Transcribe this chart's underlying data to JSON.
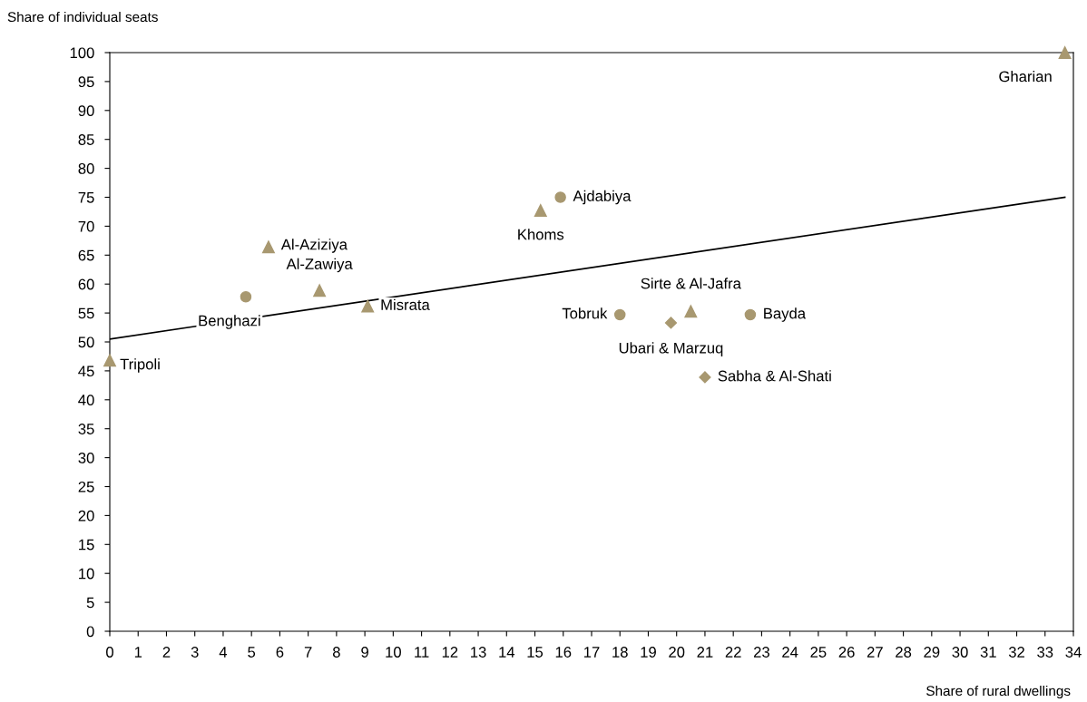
{
  "chart_data": {
    "type": "scatter",
    "xlabel": "Share of rural dwellings",
    "ylabel": "Share of individual seats",
    "xlim": [
      0,
      34
    ],
    "xticks": [
      0,
      1,
      2,
      3,
      4,
      5,
      6,
      7,
      8,
      9,
      10,
      11,
      12,
      13,
      14,
      15,
      16,
      17,
      18,
      19,
      20,
      21,
      22,
      23,
      24,
      25,
      26,
      27,
      28,
      29,
      30,
      31,
      32,
      33,
      34
    ],
    "ylim": [
      0,
      100
    ],
    "yticks": [
      0,
      5,
      10,
      15,
      20,
      25,
      30,
      35,
      40,
      45,
      50,
      55,
      60,
      65,
      70,
      75,
      80,
      85,
      90,
      95,
      100
    ],
    "grid": false,
    "series": [
      {
        "marker": "triangle",
        "color": "#a89870",
        "x": [
          0,
          5.6,
          7.4,
          9.1,
          15.2,
          20.5,
          33.7
        ],
        "values": [
          46.8,
          66.4,
          58.9,
          56.2,
          72.7,
          55.3,
          100
        ]
      },
      {
        "marker": "circle",
        "color": "#a89870",
        "x": [
          4.8,
          15.9,
          18.0,
          22.6
        ],
        "values": [
          57.8,
          75.0,
          54.7,
          54.7
        ]
      },
      {
        "marker": "diamond",
        "color": "#a89870",
        "x": [
          19.8,
          21.0
        ],
        "values": [
          53.3,
          43.9
        ]
      },
      {
        "type": "line",
        "marker": "none",
        "color": "#000000",
        "x": [
          0,
          33.7
        ],
        "values": [
          50.5,
          75.0
        ]
      }
    ],
    "annotations": [
      {
        "text": "Tripoli",
        "x": 0,
        "y": 46.8
      },
      {
        "text": "Benghazi",
        "x": 4.8,
        "y": 57.8
      },
      {
        "text": "Al-Aziziya",
        "x": 5.6,
        "y": 66.4
      },
      {
        "text": "Al-Zawiya",
        "x": 7.4,
        "y": 58.9
      },
      {
        "text": "Misrata",
        "x": 9.1,
        "y": 56.2
      },
      {
        "text": "Khoms",
        "x": 15.2,
        "y": 72.7
      },
      {
        "text": "Ajdabiya",
        "x": 15.9,
        "y": 75.0
      },
      {
        "text": "Tobruk",
        "x": 18.0,
        "y": 54.7
      },
      {
        "text": "Ubari & Marzuq",
        "x": 19.8,
        "y": 53.3
      },
      {
        "text": "Sirte & Al-Jafra",
        "x": 20.5,
        "y": 55.3
      },
      {
        "text": "Bayda",
        "x": 22.6,
        "y": 54.7
      },
      {
        "text": "Sabha & Al-Shati",
        "x": 21.0,
        "y": 43.9
      },
      {
        "text": "Gharian",
        "x": 33.7,
        "y": 100
      }
    ]
  }
}
